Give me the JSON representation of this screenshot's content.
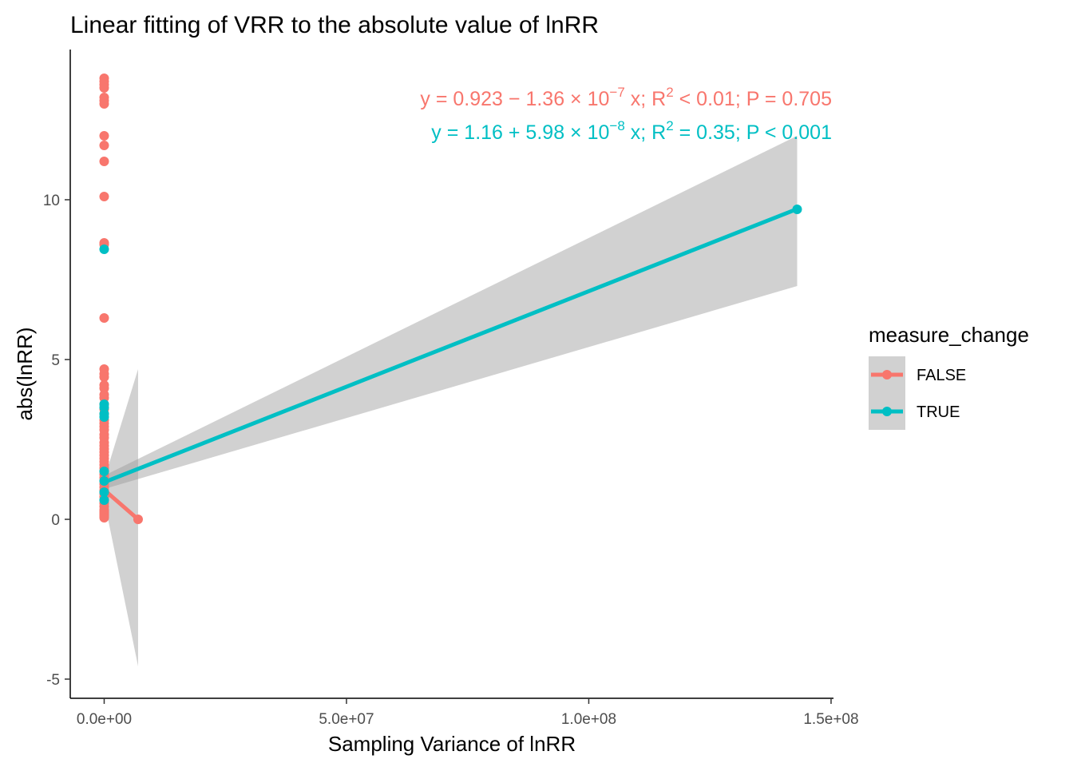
{
  "chart_data": {
    "type": "scatter",
    "title": "Linear fitting of VRR to the absolute value of lnRR",
    "xlabel": "Sampling Variance of lnRR",
    "ylabel": "abs(lnRR)",
    "xlim": [
      -7000000,
      150500000
    ],
    "ylim": [
      -5.6,
      14.7
    ],
    "x_ticks": [
      0,
      50000000,
      100000000,
      150000000
    ],
    "x_tick_labels": [
      "0.0e+00",
      "5.0e+07",
      "1.0e+08",
      "1.5e+08"
    ],
    "y_ticks": [
      -5,
      0,
      5,
      10
    ],
    "y_tick_labels": [
      "-5",
      "0",
      "5",
      "10"
    ],
    "grid": false,
    "legend": {
      "title": "measure_change",
      "position": "right",
      "entries": [
        "FALSE",
        "TRUE"
      ]
    },
    "series": [
      {
        "name": "FALSE",
        "color": "#F8766D",
        "points_x": [
          0,
          0,
          0,
          0,
          0,
          0,
          0,
          0,
          0,
          0,
          0,
          0,
          0,
          0,
          0,
          0,
          0,
          0,
          0,
          0,
          0,
          0,
          0,
          0,
          0,
          0,
          0,
          0,
          0,
          0,
          0,
          0,
          0,
          0,
          0,
          0,
          0,
          0,
          0,
          0,
          0,
          0,
          0,
          0,
          0,
          0,
          0,
          0,
          0,
          0,
          0,
          0,
          0,
          0,
          0,
          0,
          0,
          7000000
        ],
        "points_y": [
          13.8,
          13.7,
          13.6,
          13.5,
          13.2,
          13.1,
          13.0,
          12.0,
          11.7,
          11.2,
          10.1,
          8.65,
          8.6,
          6.3,
          4.7,
          4.55,
          4.45,
          4.2,
          4.1,
          3.9,
          3.8,
          3.6,
          3.45,
          3.3,
          3.1,
          3.0,
          2.9,
          2.8,
          2.65,
          2.55,
          2.4,
          2.3,
          2.2,
          2.1,
          2.0,
          1.9,
          1.8,
          1.7,
          1.6,
          1.5,
          1.4,
          1.3,
          1.2,
          1.1,
          1.0,
          0.9,
          0.8,
          0.7,
          0.6,
          0.5,
          0.4,
          0.3,
          0.25,
          0.2,
          0.15,
          0.1,
          0.05,
          0.0
        ],
        "fit": {
          "x": [
            0,
            7000000
          ],
          "y": [
            0.923,
            0.0
          ]
        },
        "ribbon": {
          "x": [
            0,
            7000000
          ],
          "lower": [
            0.6,
            -4.6
          ],
          "upper": [
            1.25,
            4.7
          ]
        },
        "equation": {
          "prefix": "y = 0.923 − 1.36 × 10",
          "exp1": "−7",
          "mid": " x; R",
          "exp2": "2",
          "suffix": " < 0.01; P = 0.705"
        }
      },
      {
        "name": "TRUE",
        "color": "#00BFC4",
        "points_x": [
          0,
          0,
          0,
          0,
          0,
          0,
          0,
          0,
          0,
          143000000
        ],
        "points_y": [
          8.45,
          3.6,
          3.5,
          3.3,
          3.2,
          1.5,
          1.2,
          0.85,
          0.6,
          9.7
        ],
        "fit": {
          "x": [
            0,
            143000000
          ],
          "y": [
            1.16,
            9.71
          ]
        },
        "ribbon": {
          "x": [
            0,
            143000000
          ],
          "lower": [
            0.95,
            7.3
          ],
          "upper": [
            1.37,
            12.0
          ]
        },
        "equation": {
          "prefix": "y = 1.16 + 5.98 × 10",
          "exp1": "−8",
          "mid": " x; R",
          "exp2": "2",
          "suffix": " = 0.35; P < 0.001"
        }
      }
    ]
  }
}
